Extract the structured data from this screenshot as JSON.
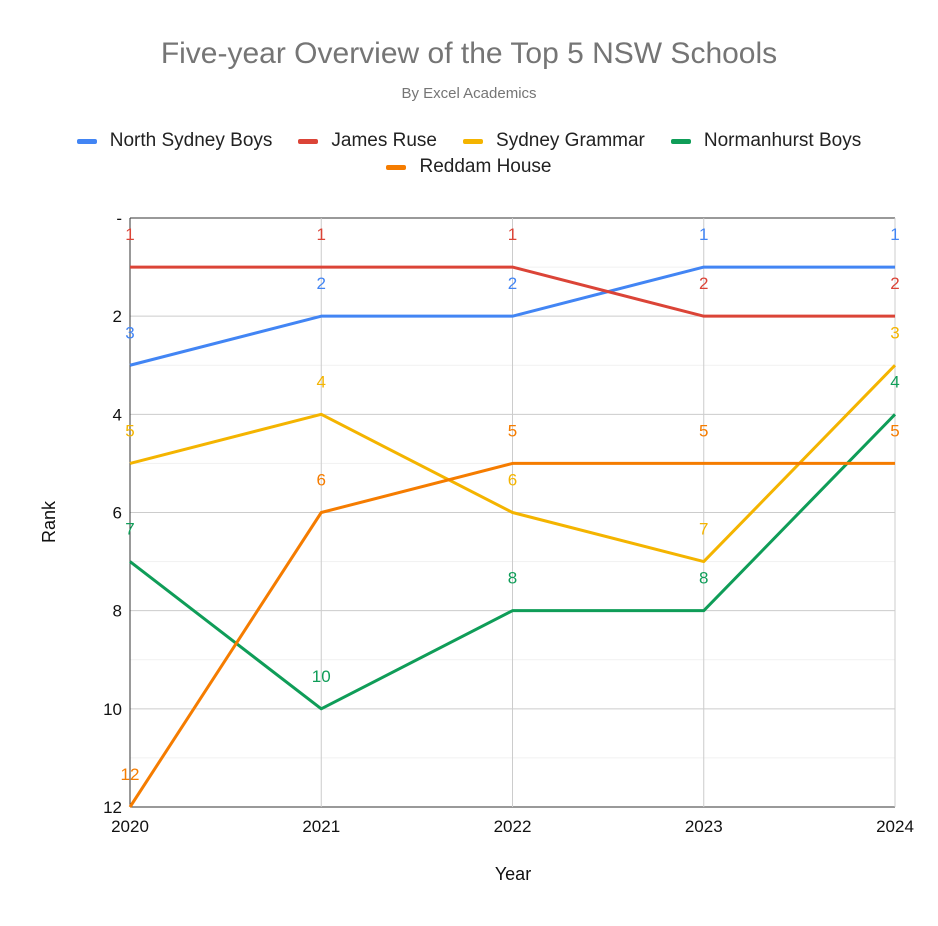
{
  "chart_data": {
    "type": "line",
    "title": "Five-year Overview of the Top 5 NSW Schools",
    "subtitle": "By Excel Academics",
    "xlabel": "Year",
    "ylabel": "Rank",
    "x": [
      "2020",
      "2021",
      "2022",
      "2023",
      "2024"
    ],
    "ylim": [
      0,
      12
    ],
    "y_reversed": true,
    "y_ticks": [
      {
        "value": 0,
        "label": "-"
      },
      {
        "value": 2,
        "label": "2"
      },
      {
        "value": 4,
        "label": "4"
      },
      {
        "value": 6,
        "label": "6"
      },
      {
        "value": 8,
        "label": "8"
      },
      {
        "value": 10,
        "label": "10"
      },
      {
        "value": 12,
        "label": "12"
      }
    ],
    "grid": true,
    "legend_position": "top",
    "data_labels": true,
    "series": [
      {
        "name": "North Sydney Boys",
        "color": "#4285F4",
        "values": [
          3,
          2,
          2,
          1,
          1
        ]
      },
      {
        "name": "James Ruse",
        "color": "#DB4437",
        "values": [
          1,
          1,
          1,
          2,
          2
        ]
      },
      {
        "name": "Sydney Grammar",
        "color": "#F4B400",
        "values": [
          5,
          4,
          6,
          7,
          3
        ]
      },
      {
        "name": "Normanhurst Boys",
        "color": "#0F9D58",
        "values": [
          7,
          10,
          8,
          8,
          4
        ]
      },
      {
        "name": "Reddam House",
        "color": "#F57C00",
        "values": [
          12,
          6,
          5,
          5,
          5
        ]
      }
    ]
  }
}
